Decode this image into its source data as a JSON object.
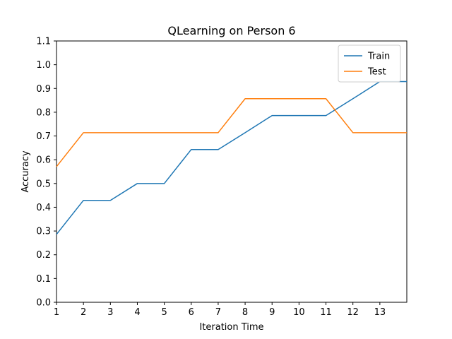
{
  "chart_data": {
    "type": "line",
    "title": "QLearning on Person 6",
    "xlabel": "Iteration Time",
    "ylabel": "Accuracy",
    "xlim": [
      1,
      14
    ],
    "ylim": [
      0.0,
      1.1
    ],
    "xticks": [
      1,
      2,
      3,
      4,
      5,
      6,
      7,
      8,
      9,
      10,
      11,
      12,
      13
    ],
    "yticks": [
      0.0,
      0.1,
      0.2,
      0.3,
      0.4,
      0.5,
      0.6,
      0.7,
      0.8,
      0.9,
      1.0,
      1.1
    ],
    "grid": false,
    "legend_position": "top-right",
    "x": [
      1,
      2,
      3,
      4,
      5,
      6,
      7,
      8,
      9,
      10,
      11,
      12,
      13,
      14
    ],
    "series": [
      {
        "name": "Train",
        "color": "#1f77b4",
        "values": [
          0.286,
          0.429,
          0.429,
          0.5,
          0.5,
          0.643,
          0.643,
          0.714,
          0.786,
          0.786,
          0.786,
          0.857,
          0.929,
          0.929
        ]
      },
      {
        "name": "Test",
        "color": "#ff7f0e",
        "values": [
          0.571,
          0.714,
          0.714,
          0.714,
          0.714,
          0.714,
          0.714,
          0.857,
          0.857,
          0.857,
          0.857,
          0.714,
          0.714,
          0.714
        ]
      }
    ]
  }
}
